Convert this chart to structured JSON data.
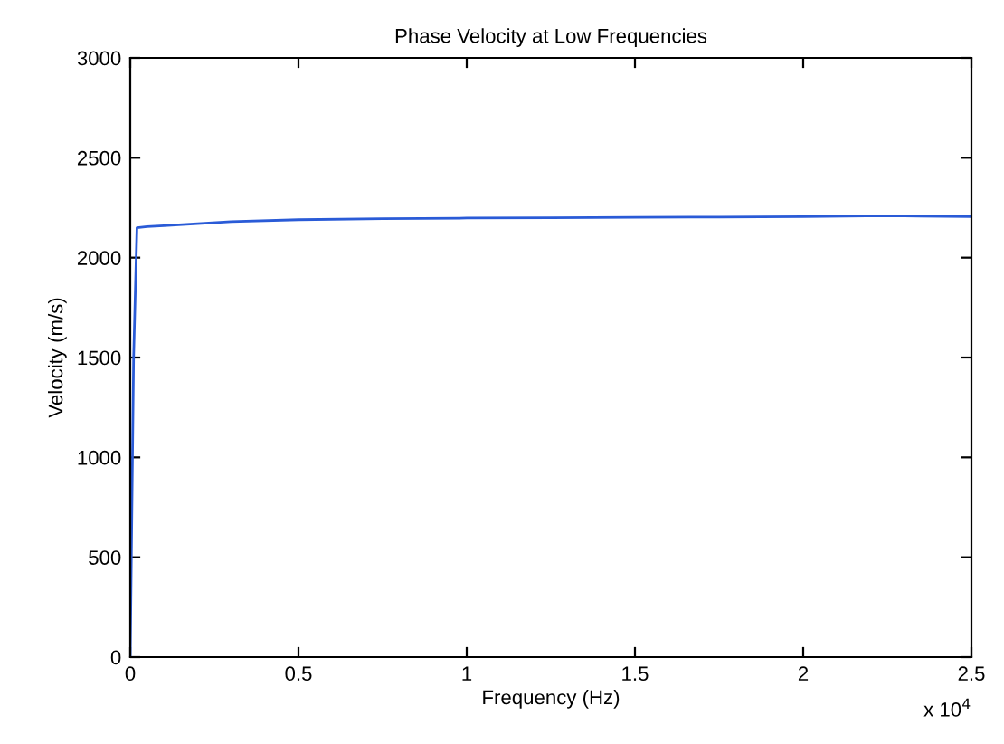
{
  "chart_data": {
    "type": "line",
    "title": "Phase Velocity at Low Frequencies",
    "xlabel": "Frequency (Hz)",
    "ylabel": "Velocity (m/s)",
    "annotations": [
      "x 10$^{4}$"
    ],
    "series": [
      {
        "color": "#2a5bd7",
        "x": [
          0,
          0.01,
          0.02,
          0.05,
          0.1,
          0.2,
          0.3,
          0.5,
          0.75,
          1.0,
          1.25,
          1.5,
          1.75,
          2.0,
          2.25,
          2.5
        ],
        "values": [
          0,
          1500,
          2150,
          2155,
          2160,
          2170,
          2180,
          2190,
          2195,
          2198,
          2200,
          2202,
          2203,
          2205,
          2210,
          2205
        ]
      }
    ],
    "xlim": [
      0,
      2.5
    ],
    "xticks": [
      0,
      0.5,
      1,
      1.5,
      2,
      2.5
    ],
    "ylim": [
      0,
      3000
    ],
    "yticks": [
      0,
      500,
      1000,
      1500,
      2000,
      2500,
      3000
    ],
    "grid": false,
    "line_style": "solid",
    "marker": "none"
  }
}
